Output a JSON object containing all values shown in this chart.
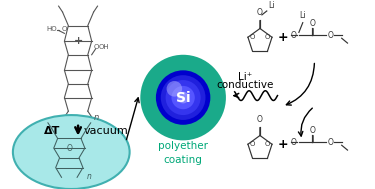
{
  "bg_color": "#ffffff",
  "teal_outer_color": "#1aaa8a",
  "cyan_circle_color": "#a8e8e8",
  "cyan_circle_edge": "#40b0b0",
  "si_grad_colors": [
    "#0000cc",
    "#2020dd",
    "#3535ee",
    "#5555ff",
    "#8888ff"
  ],
  "si_grad_radii": [
    28,
    23,
    18,
    12,
    6
  ],
  "arrow_color": "#000000",
  "teal_text_color": "#00a878",
  "structure_color": "#555555",
  "poly_color": "#406060",
  "delta_t_label": "ΔT",
  "vacuum_label": "vacuum",
  "si_label": "Si",
  "li_plus_label": "Li⁺",
  "conductive_label": "conductive",
  "polyether_label": "polyether\ncoating"
}
